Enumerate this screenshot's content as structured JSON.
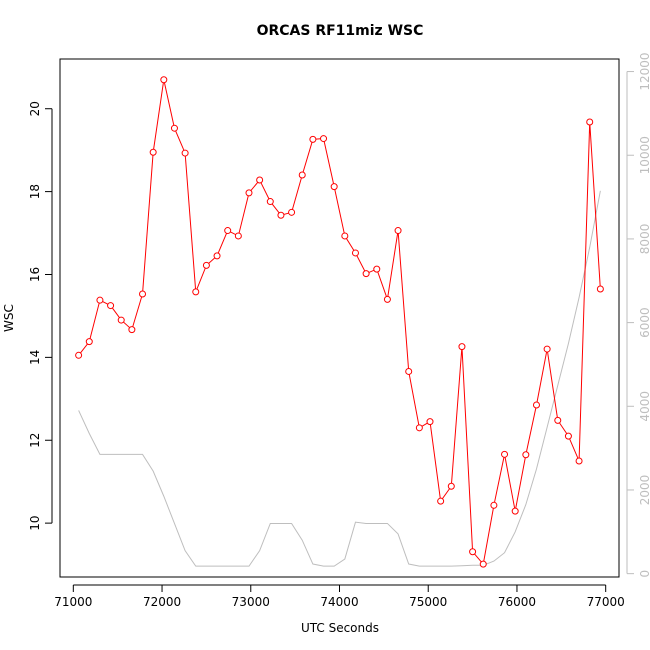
{
  "chart_data": {
    "type": "line",
    "title": "ORCAS RF11miz WSC",
    "xlabel": "UTC Seconds",
    "ylabel": "WSC",
    "xlim": [
      70850,
      77150
    ],
    "ylim": [
      8.7,
      21.2
    ],
    "y2lim": [
      -80,
      12300
    ],
    "x_ticks": [
      71000,
      72000,
      73000,
      74000,
      75000,
      76000,
      77000
    ],
    "x_tick_labels": [
      "71000",
      "72000",
      "73000",
      "74000",
      "75000",
      "76000",
      "77000"
    ],
    "y_ticks": [
      10,
      12,
      14,
      16,
      18,
      20
    ],
    "y_tick_labels": [
      "10",
      "12",
      "14",
      "16",
      "18",
      "20"
    ],
    "y2_ticks": [
      0,
      2000,
      4000,
      6000,
      8000,
      10000,
      12000
    ],
    "y2_tick_labels": [
      "0",
      "2000",
      "4000",
      "6000",
      "8000",
      "10000",
      "12000"
    ],
    "grid": false,
    "series": [
      {
        "axis": "left",
        "color": "#ff0000",
        "marker": "open-circle",
        "x": [
          71060,
          71180,
          71300,
          71420,
          71540,
          71660,
          71780,
          71900,
          72020,
          72140,
          72260,
          72380,
          72500,
          72620,
          72740,
          72860,
          72980,
          73100,
          73220,
          73340,
          73460,
          73580,
          73700,
          73820,
          73940,
          74060,
          74180,
          74300,
          74420,
          74540,
          74660,
          74780,
          74900,
          75020,
          75140,
          75260,
          75380,
          75500,
          75620,
          75740,
          75860,
          75980,
          76100,
          76220,
          76340,
          76460,
          76580,
          76700,
          76820,
          76940
        ],
        "y": [
          14.05,
          14.38,
          15.38,
          15.25,
          14.9,
          14.67,
          15.53,
          18.95,
          20.7,
          19.53,
          18.93,
          15.58,
          16.22,
          16.45,
          17.06,
          16.93,
          17.97,
          18.28,
          17.76,
          17.43,
          17.5,
          18.4,
          19.26,
          19.28,
          18.12,
          16.93,
          16.52,
          16.02,
          16.13,
          15.4,
          17.06,
          13.66,
          12.3,
          12.45,
          10.53,
          10.89,
          14.26,
          9.31,
          9.01,
          10.43,
          11.66,
          10.29,
          11.65,
          12.85,
          14.2,
          12.48,
          12.1,
          11.5,
          19.68,
          15.65
        ]
      },
      {
        "axis": "right",
        "color": "#bebebe",
        "marker": "none",
        "x": [
          71060,
          71180,
          71300,
          71420,
          71540,
          71660,
          71780,
          71900,
          72020,
          72140,
          72260,
          72380,
          72500,
          72620,
          72740,
          72860,
          72980,
          73100,
          73220,
          73340,
          73460,
          73580,
          73700,
          73820,
          73940,
          74060,
          74180,
          74300,
          74420,
          74540,
          74660,
          74780,
          74900,
          75020,
          75140,
          75260,
          75380,
          75500,
          75620,
          75740,
          75860,
          75980,
          76100,
          76220,
          76340,
          76460,
          76580,
          76700,
          76820,
          76940
        ],
        "y": [
          3900,
          3350,
          2850,
          2850,
          2850,
          2850,
          2850,
          2450,
          1850,
          1200,
          550,
          180,
          180,
          180,
          180,
          180,
          180,
          550,
          1200,
          1200,
          1200,
          800,
          230,
          180,
          180,
          350,
          1230,
          1200,
          1200,
          1200,
          950,
          230,
          180,
          180,
          180,
          180,
          190,
          200,
          200,
          300,
          500,
          1000,
          1650,
          2500,
          3500,
          4500,
          5500,
          6600,
          7800,
          9150
        ]
      }
    ]
  }
}
